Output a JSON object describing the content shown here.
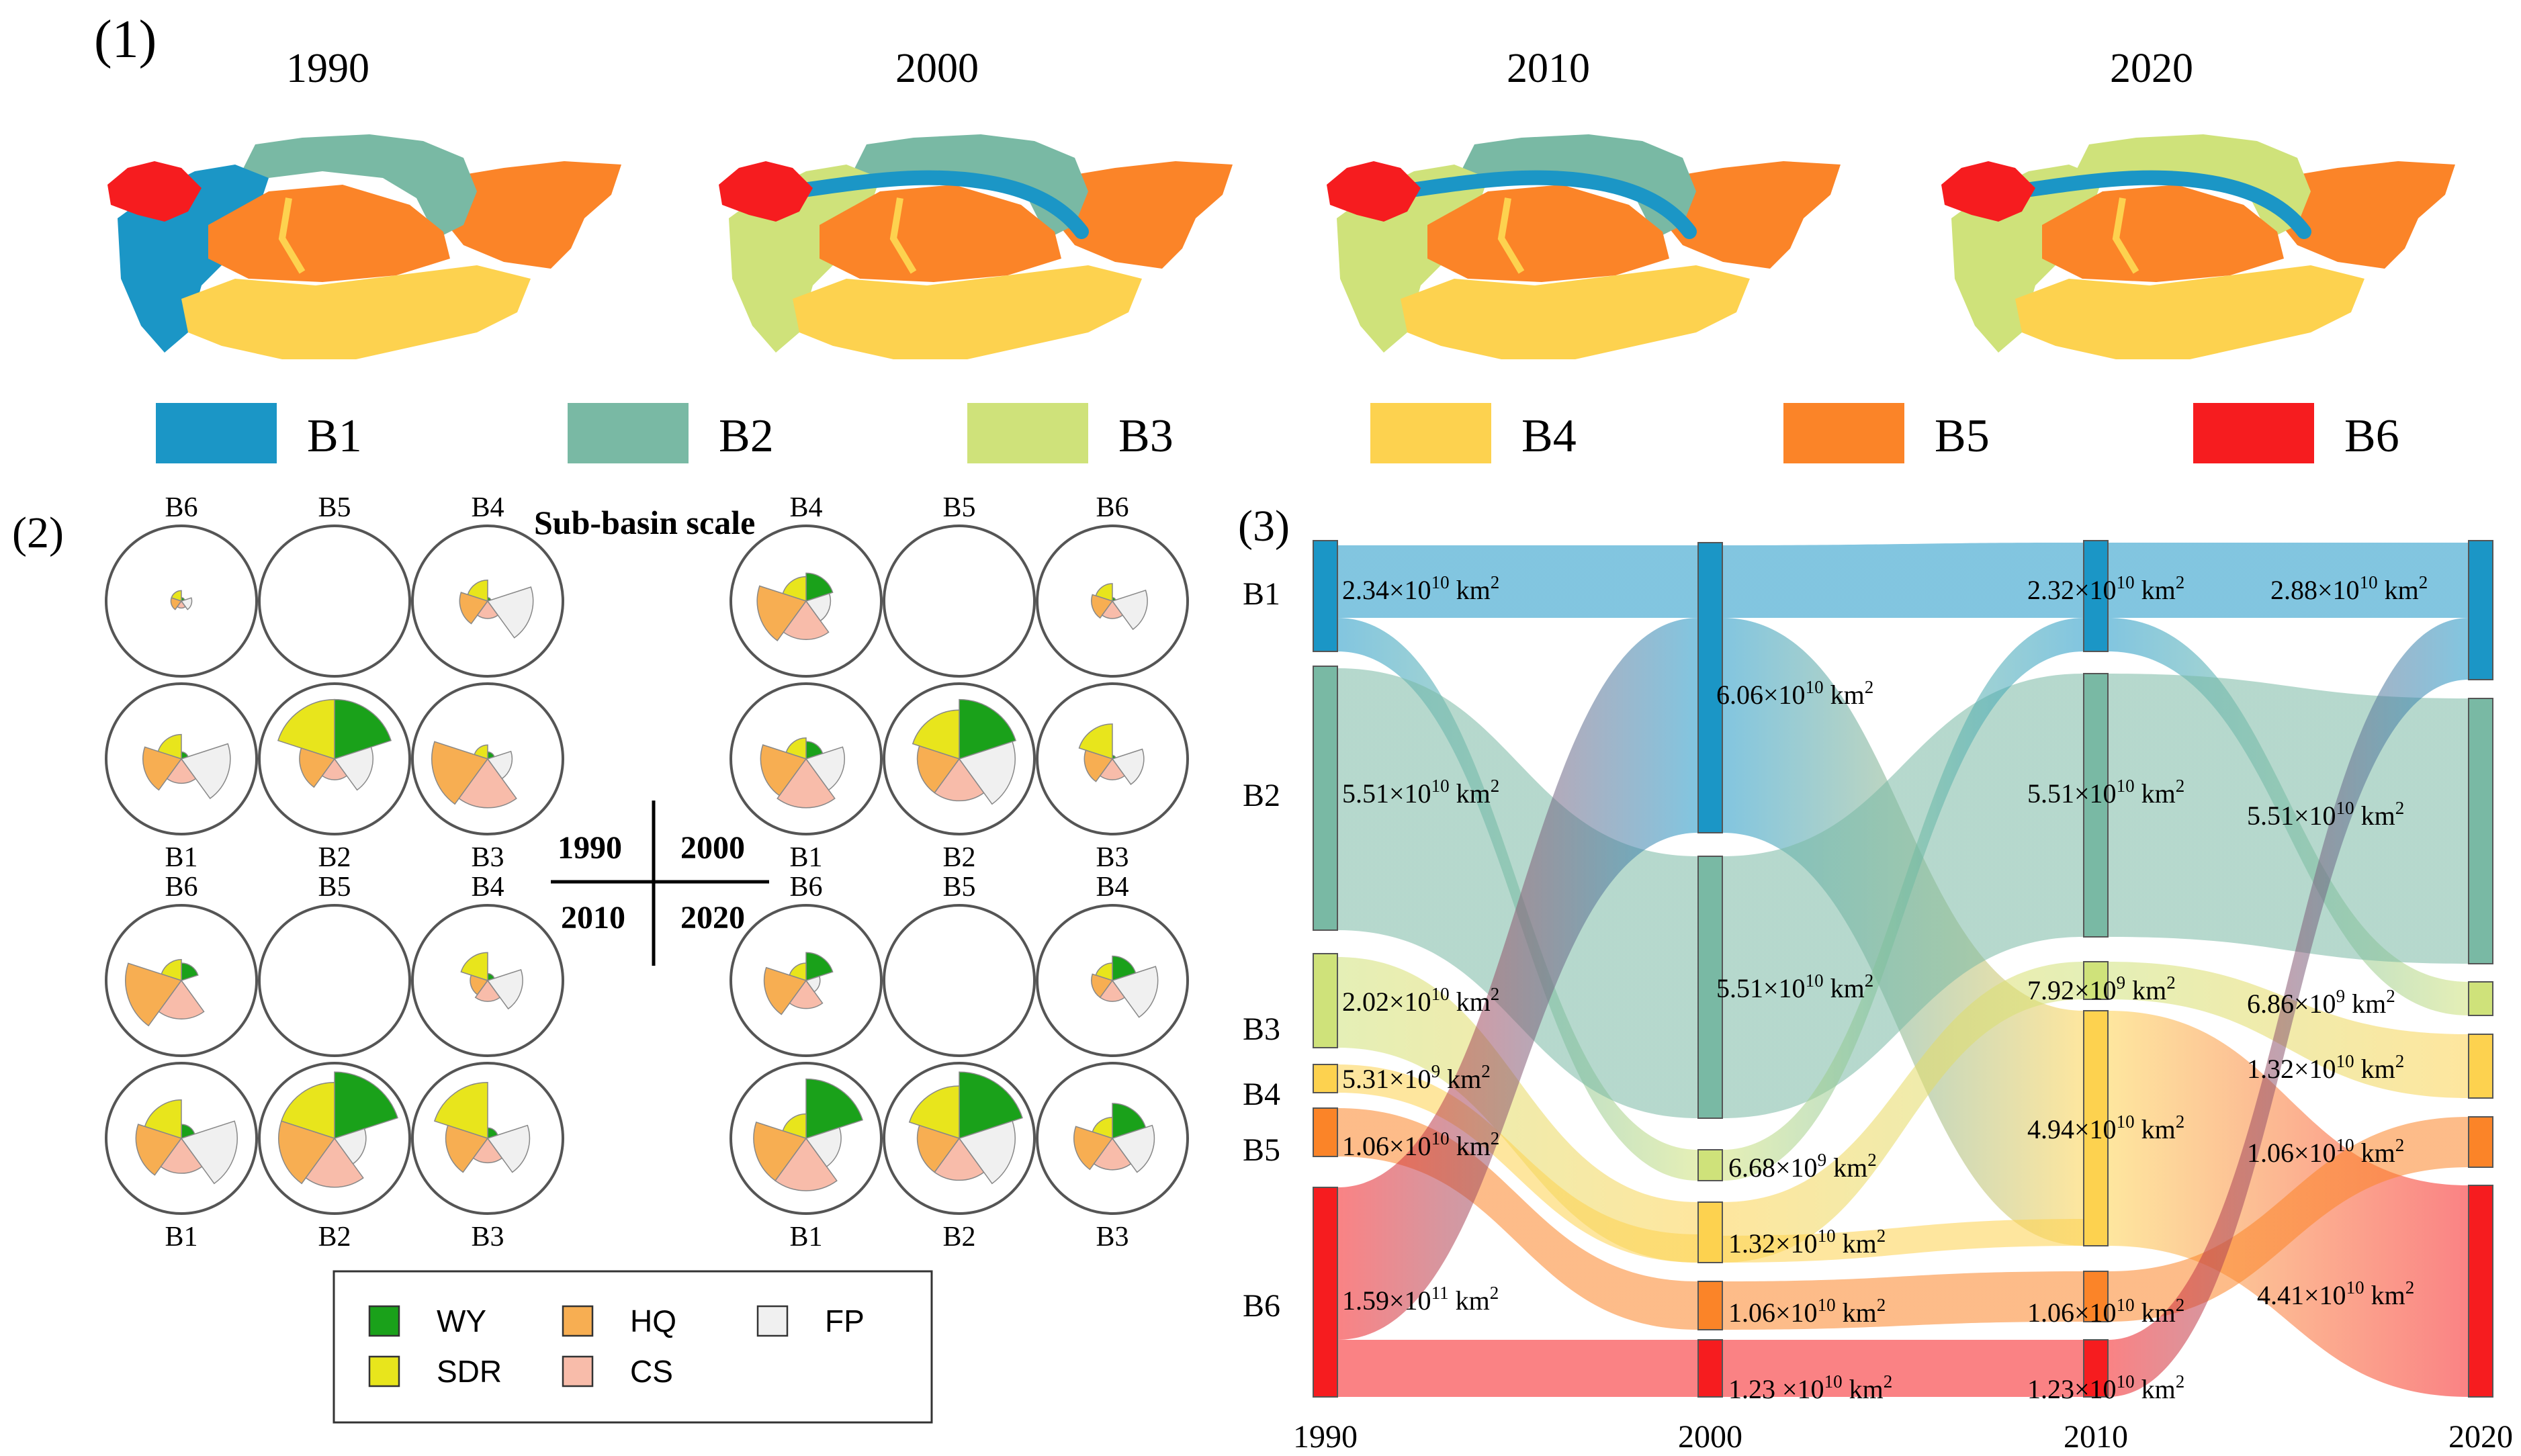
{
  "colors": {
    "B1": "#1b96c6",
    "B2": "#79b9a4",
    "B3": "#cfe27a",
    "B4": "#fdd24f",
    "B5": "#fb8428",
    "B6": "#f61c1f",
    "WY": "#1aa11a",
    "SDR": "#e8e51c",
    "HQ": "#f7ae52",
    "CS": "#f8bcaa",
    "FP": "#f0f0f0"
  },
  "panel1": {
    "label": "(1)",
    "years": [
      "1990",
      "2000",
      "2010",
      "2020"
    ],
    "legend": [
      "B1",
      "B2",
      "B3",
      "B4",
      "B5",
      "B6"
    ]
  },
  "panel2": {
    "label": "(2)",
    "title": "Sub-basin scale",
    "quadrant_labels": {
      "tl": "1990",
      "tr": "2000",
      "bl": "2010",
      "br": "2020"
    },
    "legend": [
      {
        "key": "WY",
        "label": "WY"
      },
      {
        "key": "HQ",
        "label": "HQ"
      },
      {
        "key": "FP",
        "label": "FP"
      },
      {
        "key": "SDR",
        "label": "SDR"
      },
      {
        "key": "CS",
        "label": "CS"
      }
    ],
    "rose_services": [
      "WY",
      "SDR",
      "HQ",
      "CS",
      "FP"
    ],
    "quadrants": [
      {
        "year": "1990",
        "top_order": [
          "B6",
          "B5",
          "B4"
        ],
        "bottom_order": [
          "B1",
          "B2",
          "B3"
        ],
        "values": {
          "B6": [
            0.05,
            0.15,
            0.15,
            0.1,
            0.15
          ],
          "B5": [
            0,
            0,
            0,
            0,
            0
          ],
          "B4": [
            0.05,
            0.3,
            0.4,
            0.25,
            0.65
          ],
          "B1": [
            0.1,
            0.35,
            0.55,
            0.35,
            0.7
          ],
          "B2": [
            0.85,
            0.85,
            0.5,
            0.3,
            0.55
          ],
          "B3": [
            0.1,
            0.2,
            0.8,
            0.7,
            0.35
          ]
        }
      },
      {
        "year": "2000",
        "top_order": [
          "B4",
          "B5",
          "B6"
        ],
        "bottom_order": [
          "B1",
          "B2",
          "B3"
        ],
        "values": {
          "B4": [
            0.4,
            0.35,
            0.7,
            0.55,
            0.35
          ],
          "B5": [
            0,
            0,
            0,
            0,
            0
          ],
          "B6": [
            0.05,
            0.25,
            0.3,
            0.25,
            0.5
          ],
          "B1": [
            0.25,
            0.3,
            0.65,
            0.7,
            0.55
          ],
          "B2": [
            0.85,
            0.7,
            0.6,
            0.6,
            0.8
          ],
          "B3": [
            0.05,
            0.5,
            0.4,
            0.3,
            0.45
          ]
        }
      },
      {
        "year": "2010",
        "top_order": [
          "B6",
          "B5",
          "B4"
        ],
        "bottom_order": [
          "B1",
          "B2",
          "B3"
        ],
        "values": {
          "B6": [
            0.25,
            0.3,
            0.8,
            0.55,
            0
          ],
          "B5": [
            0,
            0,
            0,
            0,
            0
          ],
          "B4": [
            0.1,
            0.4,
            0.25,
            0.3,
            0.5
          ],
          "B1": [
            0.2,
            0.55,
            0.65,
            0.5,
            0.8
          ],
          "B2": [
            0.95,
            0.8,
            0.8,
            0.7,
            0.45
          ],
          "B3": [
            0.15,
            0.8,
            0.6,
            0.35,
            0.6
          ]
        }
      },
      {
        "year": "2020",
        "top_order": [
          "B6",
          "B5",
          "B4"
        ],
        "bottom_order": [
          "B1",
          "B2",
          "B3"
        ],
        "values": {
          "B6": [
            0.4,
            0.25,
            0.6,
            0.4,
            0.2
          ],
          "B5": [
            0,
            0,
            0,
            0,
            0
          ],
          "B4": [
            0.35,
            0.25,
            0.3,
            0.3,
            0.65
          ],
          "B1": [
            0.85,
            0.35,
            0.75,
            0.75,
            0.5
          ],
          "B2": [
            0.95,
            0.75,
            0.6,
            0.6,
            0.8
          ],
          "B3": [
            0.5,
            0.3,
            0.55,
            0.45,
            0.6
          ]
        }
      }
    ]
  },
  "panel3": {
    "label": "(3)",
    "years": [
      "1990",
      "2000",
      "2010",
      "2020"
    ],
    "row_labels": [
      "B1",
      "B2",
      "B3",
      "B4",
      "B5",
      "B6"
    ],
    "nodes": {
      "1990": [
        {
          "cls": "B1",
          "label": "2.34×10",
          "exp": "10",
          "unit": " km",
          "sup": "2"
        },
        {
          "cls": "B2",
          "label": "5.51×10",
          "exp": "10",
          "unit": " km",
          "sup": "2"
        },
        {
          "cls": "B3",
          "label": "2.02×10",
          "exp": "10",
          "unit": " km",
          "sup": "2"
        },
        {
          "cls": "B4",
          "label": "5.31×10",
          "exp": "9",
          "unit": " km",
          "sup": "2"
        },
        {
          "cls": "B5",
          "label": "1.06×10",
          "exp": "10",
          "unit": " km",
          "sup": "2"
        },
        {
          "cls": "B6",
          "label": "1.59×10",
          "exp": "11",
          "unit": " km",
          "sup": "2"
        }
      ],
      "2000": [
        {
          "cls": "B1",
          "label": "6.06×10",
          "exp": "10",
          "unit": " km",
          "sup": "2"
        },
        {
          "cls": "B2",
          "label": "5.51×10",
          "exp": "10",
          "unit": " km",
          "sup": "2"
        },
        {
          "cls": "B3",
          "label": "6.68×10",
          "exp": "9",
          "unit": " km",
          "sup": "2"
        },
        {
          "cls": "B4",
          "label": "1.32×10",
          "exp": "10",
          "unit": " km",
          "sup": "2"
        },
        {
          "cls": "B5",
          "label": "1.06×10",
          "exp": "10",
          "unit": " km",
          "sup": "2"
        },
        {
          "cls": "B6",
          "label": "1.23 ×10",
          "exp": "10",
          "unit": " km",
          "sup": "2"
        }
      ],
      "2010": [
        {
          "cls": "B1",
          "label": "2.32×10",
          "exp": "10",
          "unit": " km",
          "sup": "2"
        },
        {
          "cls": "B2",
          "label": "5.51×10",
          "exp": "10",
          "unit": " km",
          "sup": "2"
        },
        {
          "cls": "B3",
          "label": "7.92×10",
          "exp": "9",
          "unit": " km",
          "sup": "2"
        },
        {
          "cls": "B4",
          "label": "4.94×10",
          "exp": "10",
          "unit": " km",
          "sup": "2"
        },
        {
          "cls": "B5",
          "label": "1.06×10",
          "exp": "10",
          "unit": " km",
          "sup": "2"
        },
        {
          "cls": "B6",
          "label": "1.23×10",
          "exp": "10",
          "unit": " km",
          "sup": "2"
        }
      ],
      "2020": [
        {
          "cls": "B1",
          "label": "2.88×10",
          "exp": "10",
          "unit": " km",
          "sup": "2"
        },
        {
          "cls": "B2",
          "label": "5.51×10",
          "exp": "10",
          "unit": " km",
          "sup": "2"
        },
        {
          "cls": "B3",
          "label": "6.86×10",
          "exp": "9",
          "unit": " km",
          "sup": "2"
        },
        {
          "cls": "B4",
          "label": "1.32×10",
          "exp": "10",
          "unit": " km",
          "sup": "2"
        },
        {
          "cls": "B5",
          "label": "1.06×10",
          "exp": "10",
          "unit": " km",
          "sup": "2"
        },
        {
          "cls": "B6",
          "label": "4.41×10",
          "exp": "10",
          "unit": " km",
          "sup": "2"
        }
      ]
    },
    "flows": [
      {
        "from": [
          "1990",
          "B1"
        ],
        "to": [
          "2000",
          "B1"
        ]
      },
      {
        "from": [
          "1990",
          "B1"
        ],
        "to": [
          "2000",
          "B3"
        ]
      },
      {
        "from": [
          "1990",
          "B2"
        ],
        "to": [
          "2000",
          "B2"
        ]
      },
      {
        "from": [
          "1990",
          "B3"
        ],
        "to": [
          "2000",
          "B4"
        ]
      },
      {
        "from": [
          "1990",
          "B4"
        ],
        "to": [
          "2000",
          "B4"
        ]
      },
      {
        "from": [
          "1990",
          "B5"
        ],
        "to": [
          "2000",
          "B5"
        ]
      },
      {
        "from": [
          "1990",
          "B6"
        ],
        "to": [
          "2000",
          "B1"
        ]
      },
      {
        "from": [
          "1990",
          "B6"
        ],
        "to": [
          "2000",
          "B6"
        ]
      },
      {
        "from": [
          "2000",
          "B1"
        ],
        "to": [
          "2010",
          "B1"
        ]
      },
      {
        "from": [
          "2000",
          "B1"
        ],
        "to": [
          "2010",
          "B4"
        ]
      },
      {
        "from": [
          "2000",
          "B2"
        ],
        "to": [
          "2010",
          "B2"
        ]
      },
      {
        "from": [
          "2000",
          "B3"
        ],
        "to": [
          "2010",
          "B1"
        ]
      },
      {
        "from": [
          "2000",
          "B4"
        ],
        "to": [
          "2010",
          "B3"
        ]
      },
      {
        "from": [
          "2000",
          "B4"
        ],
        "to": [
          "2010",
          "B4"
        ]
      },
      {
        "from": [
          "2000",
          "B5"
        ],
        "to": [
          "2010",
          "B5"
        ]
      },
      {
        "from": [
          "2000",
          "B6"
        ],
        "to": [
          "2010",
          "B6"
        ]
      },
      {
        "from": [
          "2010",
          "B1"
        ],
        "to": [
          "2020",
          "B1"
        ]
      },
      {
        "from": [
          "2010",
          "B1"
        ],
        "to": [
          "2020",
          "B3"
        ]
      },
      {
        "from": [
          "2010",
          "B2"
        ],
        "to": [
          "2020",
          "B2"
        ]
      },
      {
        "from": [
          "2010",
          "B3"
        ],
        "to": [
          "2020",
          "B4"
        ]
      },
      {
        "from": [
          "2010",
          "B4"
        ],
        "to": [
          "2020",
          "B6"
        ]
      },
      {
        "from": [
          "2010",
          "B5"
        ],
        "to": [
          "2020",
          "B5"
        ]
      },
      {
        "from": [
          "2010",
          "B6"
        ],
        "to": [
          "2020",
          "B1"
        ]
      }
    ]
  }
}
